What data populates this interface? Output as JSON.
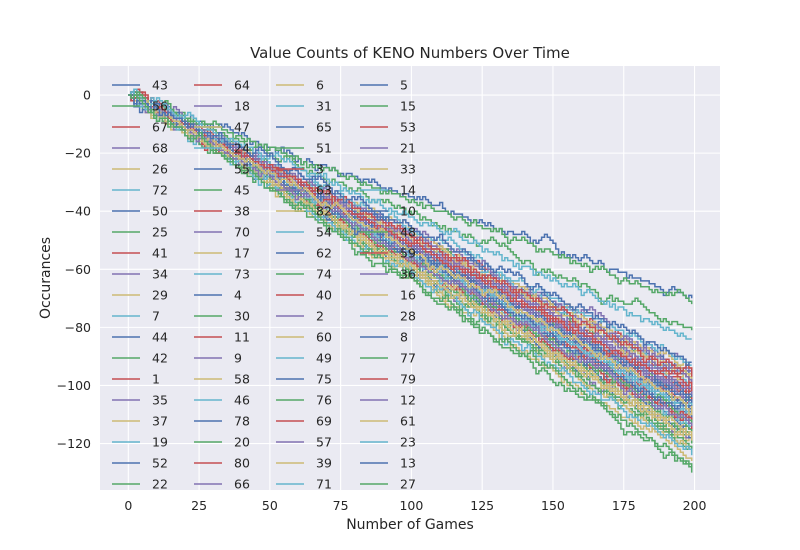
{
  "chart_data": {
    "type": "line",
    "title": "Value Counts of KENO Numbers Over Time",
    "xlabel": "Number of Games",
    "ylabel": "Occurances",
    "xlim": [
      -10,
      209
    ],
    "ylim": [
      -136,
      10
    ],
    "xticks": [
      0,
      25,
      50,
      75,
      100,
      125,
      150,
      175,
      200
    ],
    "yticks": [
      0,
      -20,
      -40,
      -60,
      -80,
      -100,
      -120
    ],
    "grid": true,
    "legend_position": "top-left",
    "legend_columns": 4,
    "x_range": [
      0,
      199
    ],
    "series_names": [
      "43",
      "56",
      "67",
      "68",
      "26",
      "72",
      "50",
      "25",
      "41",
      "34",
      "29",
      "7",
      "44",
      "42",
      "1",
      "35",
      "37",
      "19",
      "52",
      "22",
      "64",
      "18",
      "47",
      "24",
      "55",
      "45",
      "38",
      "70",
      "17",
      "73",
      "4",
      "30",
      "11",
      "9",
      "58",
      "46",
      "78",
      "20",
      "80",
      "66",
      "6",
      "31",
      "65",
      "51",
      "3",
      "63",
      "82",
      "54",
      "62",
      "74",
      "40",
      "2",
      "60",
      "49",
      "75",
      "76",
      "69",
      "57",
      "39",
      "71",
      "5",
      "15",
      "53",
      "21",
      "33",
      "14",
      "10",
      "48",
      "59",
      "36",
      "16",
      "28",
      "8",
      "77",
      "79",
      "12",
      "61",
      "23",
      "13",
      "27"
    ],
    "series_final_values": [
      -98,
      -117,
      -104,
      -94,
      -110,
      -106,
      -103,
      -112,
      -97,
      -108,
      -120,
      -113,
      -96,
      -121,
      -109,
      -101,
      -116,
      -111,
      -105,
      -99,
      -107,
      -118,
      -95,
      -103,
      -112,
      -122,
      -100,
      -106,
      -114,
      -109,
      -119,
      -104,
      -110,
      -102,
      -123,
      -97,
      -115,
      -108,
      -113,
      -101,
      -126,
      -93,
      -108,
      -116,
      -105,
      -111,
      -99,
      -114,
      -107,
      -130,
      -102,
      -96,
      -117,
      -109,
      -70,
      -120,
      -112,
      -105,
      -98,
      -110,
      -104,
      -72,
      -115,
      -100,
      -118,
      -124,
      -106,
      -113,
      -97,
      -103,
      -119,
      -109,
      -111,
      -81,
      -102,
      -114,
      -107,
      -84,
      -92,
      -128
    ],
    "colors": [
      "#4c72b0",
      "#55a868",
      "#c44e52",
      "#8172b2",
      "#ccb974",
      "#64b5cd"
    ]
  }
}
